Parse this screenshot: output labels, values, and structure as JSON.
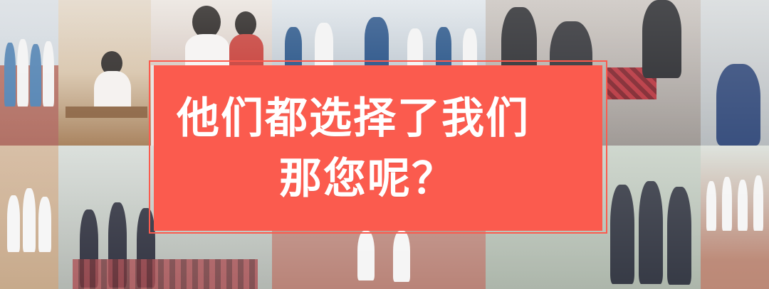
{
  "banner": {
    "line1": "他们都选择了我们",
    "line2": "那您呢？",
    "background_color": "#fb5b4e",
    "text_color": "#ffffff"
  },
  "collage": {
    "tiles": [
      {
        "id": "tile-1",
        "scene": "students-in-line-track",
        "bg": "#c9cdd1"
      },
      {
        "id": "tile-2",
        "scene": "classroom-students",
        "bg": "#c7b8a6"
      },
      {
        "id": "tile-3",
        "scene": "girls-reading",
        "bg": "#d9cfc9"
      },
      {
        "id": "tile-4",
        "scene": "students-marching",
        "bg": "#b9c3cc"
      },
      {
        "id": "tile-5",
        "scene": "students-plaid-skirts-walking",
        "bg": "#b3b0ad"
      },
      {
        "id": "tile-6",
        "scene": "student-by-wall",
        "bg": "#c6c9cb"
      },
      {
        "id": "tile-7",
        "scene": "students-on-stairs",
        "bg": "#cdb8a2"
      },
      {
        "id": "tile-8",
        "scene": "girls-in-line-vests",
        "bg": "#bfc4c1"
      },
      {
        "id": "tile-9",
        "scene": "track-students-legs",
        "bg": "#b9847a"
      },
      {
        "id": "tile-10",
        "scene": "girls-standing-row",
        "bg": "#b9c3b8"
      },
      {
        "id": "tile-11",
        "scene": "students-assembly-field",
        "bg": "#c3cbc2"
      }
    ]
  }
}
